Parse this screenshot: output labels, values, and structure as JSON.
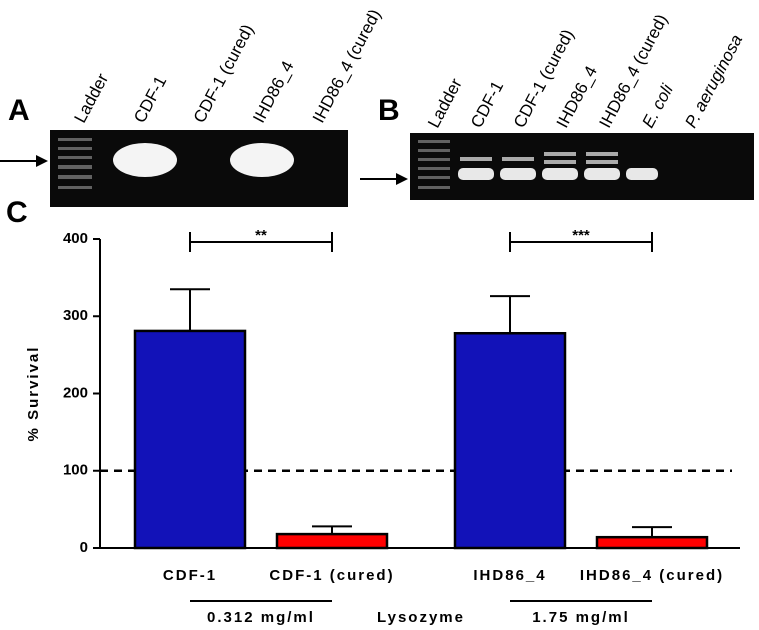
{
  "panels": [
    "A",
    "B",
    "C"
  ],
  "gel_a": {
    "lanes": [
      "Ladder",
      "CDF-1",
      "CDF-1 (cured)",
      "IHD86_4",
      "IHD86_4 (cured)"
    ]
  },
  "gel_b": {
    "lanes": [
      "Ladder",
      "CDF-1",
      "CDF-1 (cured)",
      "IHD86_4",
      "IHD86_4 (cured)",
      "E. coli",
      "P. aeruginosa"
    ]
  },
  "chart_data": {
    "type": "bar",
    "ylabel": "% Survival",
    "categories": [
      "CDF-1",
      "CDF-1 (cured)",
      "IHD86_4",
      "IHD86_4 (cured)"
    ],
    "values": [
      281,
      18,
      278,
      14
    ],
    "errors": [
      54,
      10,
      48,
      13
    ],
    "colors": [
      "#1212b8",
      "#ff0000",
      "#1212b8",
      "#ff0000"
    ],
    "ylim": [
      0,
      400
    ],
    "yticks": [
      0,
      100,
      200,
      300,
      400
    ],
    "reference_lines": [
      100
    ],
    "significance": [
      {
        "label": "**",
        "pair": [
          0,
          1
        ]
      },
      {
        "label": "***",
        "pair": [
          2,
          3
        ]
      }
    ],
    "groups": [
      {
        "label": "0.312 mg/ml",
        "pair": [
          0,
          1
        ]
      },
      {
        "label": "1.75 mg/ml",
        "pair": [
          2,
          3
        ]
      }
    ],
    "group_title": "Lysozyme"
  }
}
